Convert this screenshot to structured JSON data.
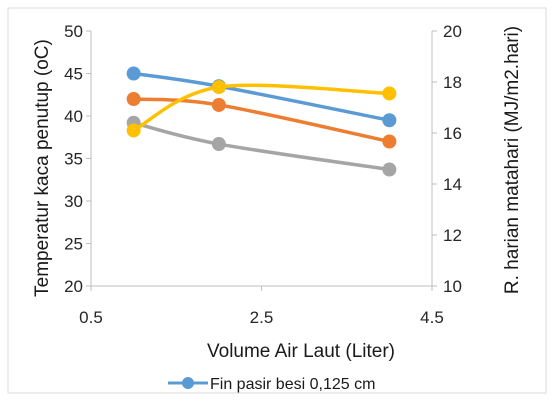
{
  "chart_data": {
    "type": "line",
    "x": [
      1,
      2,
      4
    ],
    "xlabel": "Volume Air Laut (Liter)",
    "x_ticks": [
      "0.5",
      "2.5",
      "4.5"
    ],
    "xlim": [
      0.5,
      4.5
    ],
    "ylabel": "Temperatur kaca penutup (oC)",
    "ylim": [
      20,
      50
    ],
    "y_ticks": [
      "20",
      "25",
      "30",
      "35",
      "40",
      "45",
      "50"
    ],
    "y2label": "R. harian matahari (MJ/m2.hari)",
    "y2lim": [
      10,
      20
    ],
    "y2_ticks": [
      "10",
      "12",
      "14",
      "16",
      "18",
      "20"
    ],
    "grid": false,
    "legend_position": "bottom",
    "series": [
      {
        "name": "Fin pasir besi 0,125 cm",
        "axis": "left",
        "color": "#5b9bd5",
        "values": [
          45,
          43.5,
          39.5
        ]
      },
      {
        "name": "",
        "axis": "left",
        "color": "#ed7d31",
        "values": [
          42,
          41.3,
          37
        ]
      },
      {
        "name": "",
        "axis": "left",
        "color": "#a5a5a5",
        "values": [
          39.2,
          36.7,
          33.7
        ]
      },
      {
        "name": "",
        "axis": "right",
        "color": "#ffc000",
        "values": [
          16.1,
          17.8,
          17.55
        ]
      }
    ]
  }
}
